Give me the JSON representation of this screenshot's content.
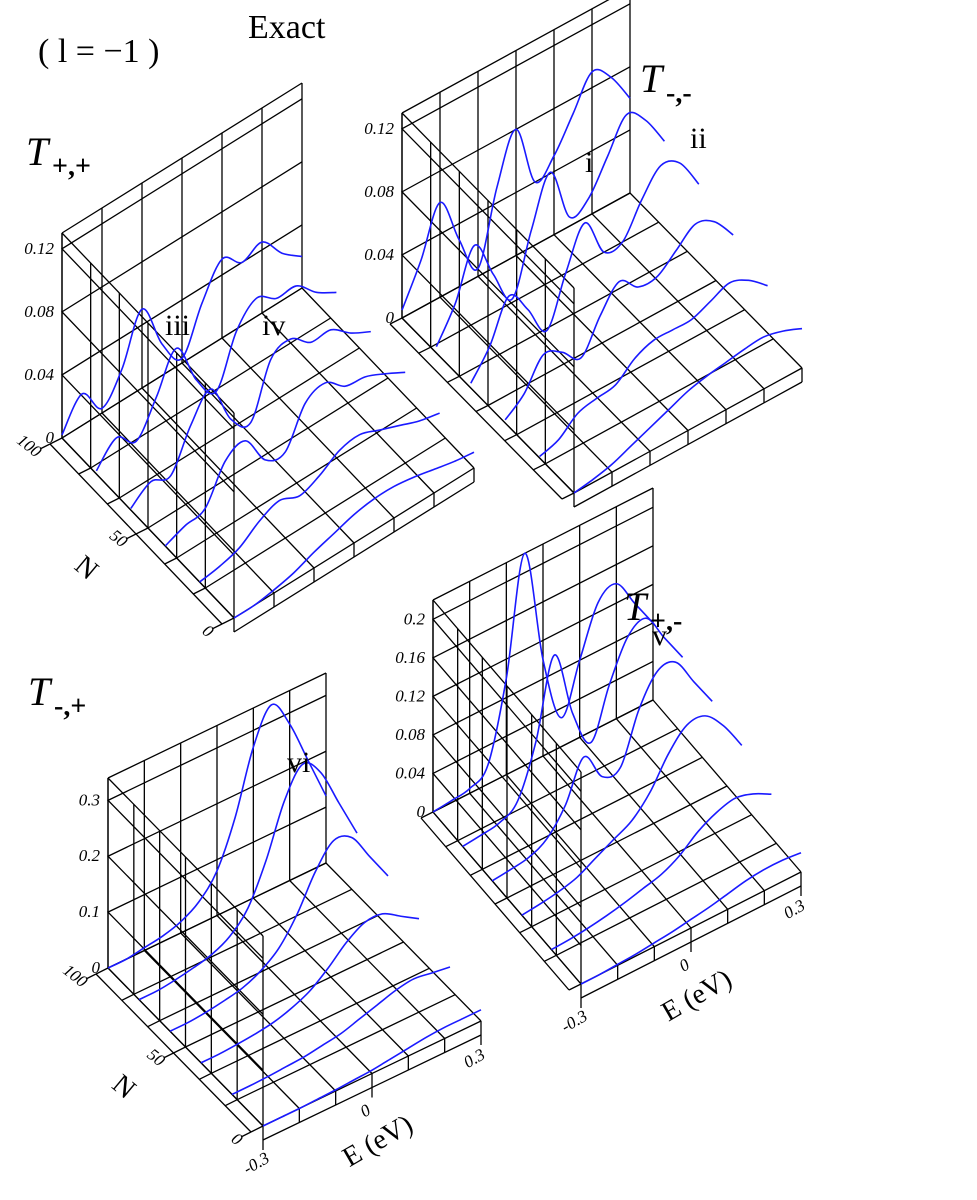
{
  "figure_label": "( l = −1 )",
  "method": "Exact",
  "chart_data": [
    {
      "type": "waterfall",
      "title": "T",
      "title_sub": "+,+",
      "color": "#1a1aff",
      "x": [
        -0.3,
        -0.25,
        -0.2,
        -0.15,
        -0.1,
        -0.05,
        0,
        0.05,
        0.1,
        0.15,
        0.2,
        0.25,
        0.3
      ],
      "xlim": [
        -0.3,
        0.3
      ],
      "nlim": [
        0,
        100
      ],
      "nticks": [
        0,
        50,
        100
      ],
      "nlabel": "N",
      "zlim": [
        0,
        0.13
      ],
      "zticks": [
        0,
        0.04,
        0.08,
        0.12
      ],
      "annotations": [
        "iii",
        "iv"
      ],
      "series": [
        {
          "N": 100,
          "values": [
            0.002,
            0.02,
            0.003,
            0.02,
            0.05,
            0.02,
            0.003,
            0.03,
            0.05,
            0.04,
            0.045,
            0.03,
            0.02
          ]
        },
        {
          "N": 80,
          "values": [
            0.002,
            0.015,
            0.005,
            0.025,
            0.048,
            0.02,
            0.005,
            0.035,
            0.048,
            0.04,
            0.04,
            0.028,
            0.02
          ]
        },
        {
          "N": 60,
          "values": [
            0.001,
            0.01,
            0.006,
            0.03,
            0.045,
            0.018,
            0.008,
            0.04,
            0.045,
            0.035,
            0.035,
            0.025,
            0.018
          ]
        },
        {
          "N": 40,
          "values": [
            0,
            0.005,
            0.008,
            0.03,
            0.035,
            0.015,
            0.012,
            0.035,
            0.04,
            0.03,
            0.028,
            0.022,
            0.015
          ]
        },
        {
          "N": 20,
          "values": [
            0,
            0.002,
            0.006,
            0.015,
            0.02,
            0.015,
            0.02,
            0.028,
            0.03,
            0.025,
            0.02,
            0.015,
            0.012
          ]
        },
        {
          "N": 0,
          "values": [
            0,
            0,
            0.002,
            0.005,
            0.01,
            0.014,
            0.018,
            0.02,
            0.02,
            0.018,
            0.015,
            0.012,
            0.01
          ]
        }
      ]
    },
    {
      "type": "waterfall",
      "title": "T",
      "title_sub": "-,-",
      "color": "#1a1aff",
      "x": [
        -0.3,
        -0.25,
        -0.2,
        -0.15,
        -0.1,
        -0.05,
        0,
        0.05,
        0.1,
        0.15,
        0.2,
        0.25,
        0.3
      ],
      "xlim": [
        -0.3,
        0.3
      ],
      "nlim": [
        0,
        100
      ],
      "zlim": [
        0,
        0.13
      ],
      "zticks": [
        0,
        0.04,
        0.08,
        0.12
      ],
      "annotations": [
        "i",
        "ii"
      ],
      "series": [
        {
          "N": 100,
          "values": [
            0.005,
            0.03,
            0.06,
            0.03,
            0.005,
            0.05,
            0.08,
            0.04,
            0.05,
            0.07,
            0.09,
            0.08,
            0.06
          ]
        },
        {
          "N": 80,
          "values": [
            0.004,
            0.025,
            0.055,
            0.03,
            0.008,
            0.045,
            0.075,
            0.04,
            0.045,
            0.065,
            0.085,
            0.075,
            0.055
          ]
        },
        {
          "N": 60,
          "values": [
            0.003,
            0.02,
            0.045,
            0.03,
            0.01,
            0.04,
            0.065,
            0.04,
            0.04,
            0.06,
            0.075,
            0.07,
            0.05
          ]
        },
        {
          "N": 40,
          "values": [
            0.002,
            0.012,
            0.03,
            0.025,
            0.015,
            0.035,
            0.05,
            0.04,
            0.04,
            0.05,
            0.06,
            0.055,
            0.04
          ]
        },
        {
          "N": 20,
          "values": [
            0.001,
            0.005,
            0.015,
            0.018,
            0.02,
            0.03,
            0.035,
            0.035,
            0.035,
            0.04,
            0.045,
            0.04,
            0.03
          ]
        },
        {
          "N": 0,
          "values": [
            0,
            0.002,
            0.005,
            0.01,
            0.015,
            0.02,
            0.025,
            0.028,
            0.03,
            0.032,
            0.033,
            0.03,
            0.025
          ]
        }
      ]
    },
    {
      "type": "waterfall",
      "title": "T",
      "title_sub": "-,+",
      "color": "#1a1aff",
      "x": [
        -0.3,
        -0.25,
        -0.2,
        -0.15,
        -0.1,
        -0.05,
        0,
        0.05,
        0.1,
        0.15,
        0.2,
        0.25,
        0.3
      ],
      "xlim": [
        -0.3,
        0.3
      ],
      "xticks": [
        -0.3,
        0,
        0.3
      ],
      "xlabel": "E  (eV)",
      "nlim": [
        0,
        100
      ],
      "nticks": [
        0,
        50,
        100
      ],
      "nlabel": "N",
      "zlim": [
        0,
        0.34
      ],
      "zticks": [
        0,
        0.1,
        0.2,
        0.3
      ],
      "annotations": [
        "vi"
      ],
      "series": [
        {
          "N": 100,
          "values": [
            0,
            0,
            0.005,
            0.01,
            0.02,
            0.04,
            0.08,
            0.16,
            0.27,
            0.33,
            0.28,
            0.2,
            0.12
          ]
        },
        {
          "N": 80,
          "values": [
            0,
            0,
            0.004,
            0.01,
            0.018,
            0.035,
            0.07,
            0.14,
            0.23,
            0.28,
            0.25,
            0.18,
            0.11
          ]
        },
        {
          "N": 60,
          "values": [
            0,
            0,
            0.003,
            0.008,
            0.015,
            0.03,
            0.055,
            0.1,
            0.16,
            0.2,
            0.19,
            0.14,
            0.09
          ]
        },
        {
          "N": 40,
          "values": [
            0,
            0,
            0.002,
            0.005,
            0.01,
            0.02,
            0.035,
            0.06,
            0.09,
            0.11,
            0.11,
            0.09,
            0.07
          ]
        },
        {
          "N": 20,
          "values": [
            0,
            0,
            0.001,
            0.003,
            0.005,
            0.01,
            0.015,
            0.025,
            0.035,
            0.045,
            0.05,
            0.045,
            0.04
          ]
        },
        {
          "N": 0,
          "values": [
            0,
            0,
            0,
            0.001,
            0.002,
            0.004,
            0.006,
            0.01,
            0.014,
            0.018,
            0.02,
            0.02,
            0.02
          ]
        }
      ]
    },
    {
      "type": "waterfall",
      "title": "T",
      "title_sub": "+,-",
      "color": "#1a1aff",
      "x": [
        -0.3,
        -0.25,
        -0.2,
        -0.15,
        -0.1,
        -0.05,
        0,
        0.05,
        0.1,
        0.15,
        0.2,
        0.25,
        0.3
      ],
      "xlim": [
        -0.3,
        0.3
      ],
      "xticks": [
        -0.3,
        0,
        0.3
      ],
      "xlabel": "E  (eV)",
      "nlim": [
        0,
        100
      ],
      "zlim": [
        0,
        0.22
      ],
      "zticks": [
        0,
        0.04,
        0.08,
        0.12,
        0.16,
        0.2
      ],
      "annotations": [
        "v"
      ],
      "series": [
        {
          "N": 100,
          "values": [
            0,
            0.002,
            0.005,
            0.02,
            0.1,
            0.22,
            0.1,
            0.03,
            0.08,
            0.13,
            0.14,
            0.11,
            0.08
          ]
        },
        {
          "N": 80,
          "values": [
            0,
            0.002,
            0.005,
            0.018,
            0.07,
            0.15,
            0.08,
            0.04,
            0.09,
            0.13,
            0.14,
            0.11,
            0.08
          ]
        },
        {
          "N": 60,
          "values": [
            0,
            0.002,
            0.005,
            0.015,
            0.04,
            0.08,
            0.05,
            0.05,
            0.1,
            0.13,
            0.13,
            0.1,
            0.07
          ]
        },
        {
          "N": 40,
          "values": [
            0,
            0.002,
            0.005,
            0.01,
            0.02,
            0.03,
            0.04,
            0.06,
            0.09,
            0.11,
            0.11,
            0.09,
            0.06
          ]
        },
        {
          "N": 20,
          "values": [
            0,
            0.001,
            0.003,
            0.006,
            0.01,
            0.015,
            0.02,
            0.03,
            0.045,
            0.055,
            0.06,
            0.055,
            0.045
          ]
        },
        {
          "N": 0,
          "values": [
            0,
            0,
            0.001,
            0.002,
            0.004,
            0.006,
            0.009,
            0.012,
            0.016,
            0.02,
            0.022,
            0.022,
            0.02
          ]
        }
      ]
    }
  ]
}
